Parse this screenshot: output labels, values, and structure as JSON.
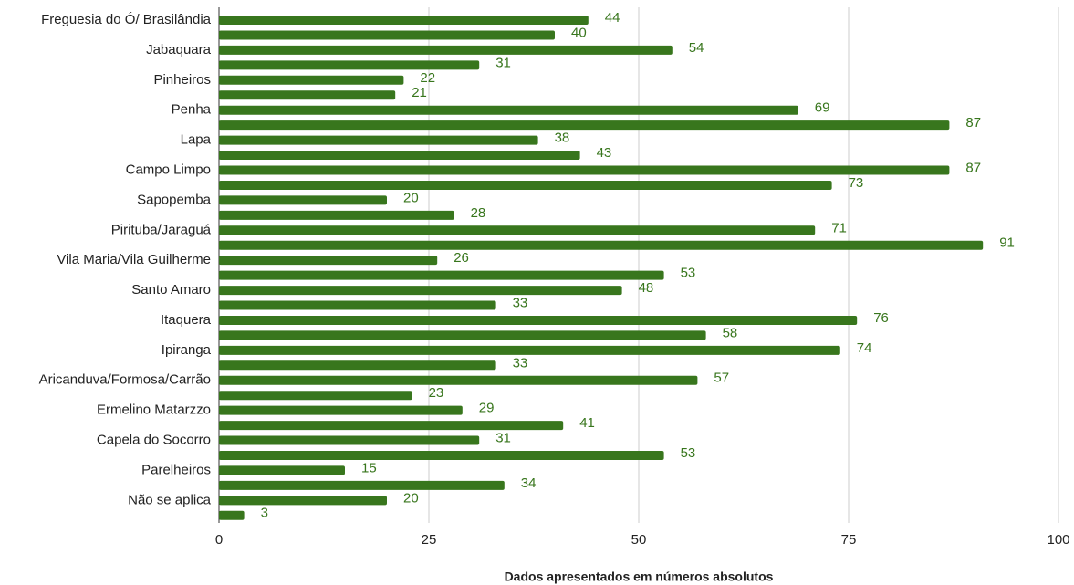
{
  "chart_data": {
    "type": "bar",
    "orientation": "horizontal",
    "categories": [
      "Freguesia do Ó/ Brasilândia",
      null,
      "Jabaquara",
      null,
      "Pinheiros",
      null,
      "Penha",
      null,
      "Lapa",
      null,
      "Campo Limpo",
      null,
      "Sapopemba",
      null,
      "Pirituba/Jaraguá",
      null,
      "Vila Maria/Vila Guilherme",
      null,
      "Santo Amaro",
      null,
      "Itaquera",
      null,
      "Ipiranga",
      null,
      "Aricanduva/Formosa/Carrão",
      null,
      "Ermelino Matarzzo",
      null,
      "Capela do Socorro",
      null,
      "Parelheiros",
      null,
      "Não se aplica",
      null
    ],
    "values": [
      44,
      40,
      54,
      31,
      22,
      21,
      69,
      87,
      38,
      43,
      87,
      73,
      20,
      28,
      71,
      91,
      26,
      53,
      48,
      33,
      76,
      58,
      74,
      33,
      57,
      23,
      29,
      41,
      31,
      53,
      15,
      34,
      20,
      3
    ],
    "color": "#38761d",
    "xlim": [
      0,
      100
    ],
    "xticks": [
      0,
      25,
      50,
      75,
      100
    ],
    "grid": true,
    "x_label": "Dados apresentados em números absolutos"
  }
}
